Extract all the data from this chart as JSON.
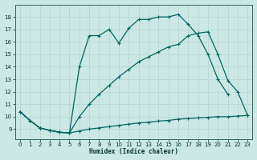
{
  "xlabel": "Humidex (Indice chaleur)",
  "xlim": [
    -0.5,
    23.5
  ],
  "ylim": [
    8.2,
    19.0
  ],
  "yticks": [
    9,
    10,
    11,
    12,
    13,
    14,
    15,
    16,
    17,
    18
  ],
  "xticks": [
    0,
    1,
    2,
    3,
    4,
    5,
    6,
    7,
    8,
    9,
    10,
    11,
    12,
    13,
    14,
    15,
    16,
    17,
    18,
    19,
    20,
    21,
    22,
    23
  ],
  "bg_color": "#cce8e4",
  "line_color": "#006666",
  "grid_color": "#b8d8d4",
  "line_bottom": {
    "x": [
      0,
      1,
      2,
      3,
      4,
      5,
      6,
      7,
      8,
      9,
      10,
      11,
      12,
      13,
      14,
      15,
      16,
      17,
      18,
      19,
      20,
      21,
      22,
      23
    ],
    "y": [
      10.4,
      9.7,
      9.1,
      8.9,
      8.75,
      8.7,
      8.85,
      9.0,
      9.1,
      9.2,
      9.3,
      9.4,
      9.5,
      9.55,
      9.65,
      9.7,
      9.8,
      9.85,
      9.9,
      9.95,
      10.0,
      10.0,
      10.05,
      10.1
    ]
  },
  "line_mid": {
    "x": [
      0,
      1,
      2,
      3,
      4,
      5,
      6,
      7,
      8,
      9,
      10,
      11,
      12,
      13,
      14,
      15,
      16,
      17,
      18,
      19,
      20,
      21
    ],
    "y": [
      10.4,
      9.7,
      9.1,
      8.9,
      8.75,
      8.7,
      14.0,
      16.5,
      16.5,
      17.0,
      15.9,
      17.1,
      17.8,
      17.8,
      18.0,
      18.0,
      18.2,
      17.4,
      16.5,
      15.0,
      13.0,
      11.8
    ]
  },
  "line_top": {
    "x": [
      0,
      1,
      2,
      3,
      4,
      5,
      6,
      7,
      8,
      9,
      10,
      11,
      12,
      13,
      14,
      15,
      16,
      17,
      18,
      19,
      20,
      21,
      22,
      23
    ],
    "y": [
      10.4,
      9.7,
      9.1,
      8.9,
      8.75,
      8.7,
      10.0,
      11.0,
      11.8,
      12.5,
      13.2,
      13.8,
      14.4,
      14.8,
      15.2,
      15.6,
      15.8,
      16.5,
      16.7,
      16.8,
      15.0,
      12.9,
      12.0,
      10.1
    ]
  }
}
